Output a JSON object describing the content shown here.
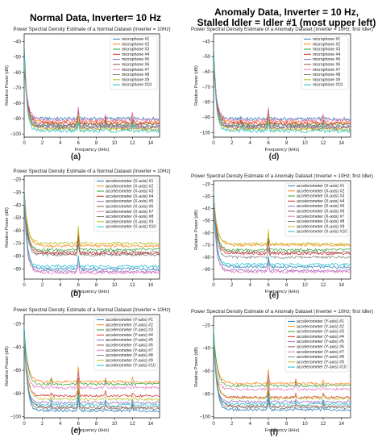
{
  "headings": {
    "left": "Normal Data, Inverter= 10 Hz",
    "right_line1": "Anomaly Data, Inverter = 10 Hz,",
    "right_line2": "Stalled Idler = Idler #1 (most upper left)"
  },
  "colors": [
    "#1f77b4",
    "#ff7f0e",
    "#2ca02c",
    "#d62728",
    "#9467bd",
    "#8c564b",
    "#e377c2",
    "#7f7f7f",
    "#bcbd22",
    "#17becf"
  ],
  "chart_data": [
    {
      "id": "a",
      "caption": "(a)",
      "type": "line",
      "title": "Power Spectral Density Estimate of a Normal Dataset (Inverter = 10Hz)",
      "xlabel": "Frequency (kHz)",
      "ylabel": "Relative Power (dB)",
      "xlim": [
        0,
        15
      ],
      "ylim": [
        -102,
        -35
      ],
      "xticks": [
        0,
        2,
        4,
        6,
        8,
        10,
        12,
        14
      ],
      "yticks": [
        -100,
        -90,
        -80,
        -70,
        -60,
        -50,
        -40
      ],
      "legend_position": "top-right",
      "peaks": [
        {
          "x": 6.0,
          "h": 10
        },
        {
          "x": 12.0,
          "h": 5
        },
        {
          "x": 9.0,
          "h": 3
        }
      ],
      "series": [
        {
          "name": "microphone #1",
          "start": -40,
          "floor": -90,
          "decay": 1.8
        },
        {
          "name": "microphone #2",
          "start": -45,
          "floor": -92,
          "decay": 1.5
        },
        {
          "name": "microphone #3",
          "start": -42,
          "floor": -94,
          "decay": 1.6
        },
        {
          "name": "microphone #4",
          "start": -48,
          "floor": -93,
          "decay": 1.4
        },
        {
          "name": "microphone #5",
          "start": -50,
          "floor": -95,
          "decay": 1.3
        },
        {
          "name": "microphone #6",
          "start": -46,
          "floor": -96,
          "decay": 1.5
        },
        {
          "name": "microphone #7",
          "start": -55,
          "floor": -91,
          "decay": 1.2
        },
        {
          "name": "microphone #8",
          "start": -44,
          "floor": -95,
          "decay": 1.7
        },
        {
          "name": "microphone #9",
          "start": -52,
          "floor": -97,
          "decay": 1.4
        },
        {
          "name": "microphone #10",
          "start": -47,
          "floor": -98,
          "decay": 1.6
        }
      ]
    },
    {
      "id": "b",
      "caption": "(b)",
      "type": "line",
      "title": "Power Spectral Density Estimate of a Normal Dataset (Inverter = 10Hz)",
      "xlabel": "Frequency (kHz)",
      "ylabel": "Relative Power (dB)",
      "xlim": [
        0,
        15
      ],
      "ylim": [
        -98,
        -17
      ],
      "xticks": [
        0,
        2,
        4,
        6,
        8,
        10,
        12,
        14
      ],
      "yticks": [
        -90,
        -80,
        -70,
        -60,
        -50,
        -40,
        -30,
        -20
      ],
      "legend_position": "top-right",
      "peaks": [
        {
          "x": 6.0,
          "h": 14
        }
      ],
      "series": [
        {
          "name": "accelerometer (X-axis) #1",
          "start": -25,
          "floor": -90,
          "decay": 1.5
        },
        {
          "name": "accelerometer (X-axis) #2",
          "start": -28,
          "floor": -72,
          "decay": 1.2
        },
        {
          "name": "accelerometer (X-axis) #3",
          "start": -30,
          "floor": -75,
          "decay": 1.3
        },
        {
          "name": "accelerometer (X-axis) #4",
          "start": -26,
          "floor": -78,
          "decay": 1.4
        },
        {
          "name": "accelerometer (X-axis) #5",
          "start": -32,
          "floor": -92,
          "decay": 1.6
        },
        {
          "name": "accelerometer (X-axis) #6",
          "start": -29,
          "floor": -77,
          "decay": 1.3
        },
        {
          "name": "accelerometer (X-axis) #7",
          "start": -27,
          "floor": -93,
          "decay": 1.5
        },
        {
          "name": "accelerometer (X-axis) #8",
          "start": -31,
          "floor": -79,
          "decay": 1.4
        },
        {
          "name": "accelerometer (X-axis) #9",
          "start": -33,
          "floor": -70,
          "decay": 1.2
        },
        {
          "name": "accelerometer (X-axis) #10",
          "start": -28,
          "floor": -88,
          "decay": 1.6
        }
      ]
    },
    {
      "id": "c",
      "caption": "(c)",
      "type": "line",
      "title": "Power Spectral Density Estimate of a Normal Dataset (Inverter = 10Hz)",
      "xlabel": "Frequency (kHz)",
      "ylabel": "Relative Power (dB)",
      "xlim": [
        0,
        15
      ],
      "ylim": [
        -101,
        -12
      ],
      "xticks": [
        0,
        2,
        4,
        6,
        8,
        10,
        12,
        14
      ],
      "yticks": [
        -100,
        -80,
        -60,
        -40,
        -20
      ],
      "legend_position": "top-right",
      "peaks": [
        {
          "x": 6.0,
          "h": 16
        },
        {
          "x": 3.0,
          "h": 5
        },
        {
          "x": 9.0,
          "h": 4
        },
        {
          "x": 12.0,
          "h": 4
        }
      ],
      "series": [
        {
          "name": "accelerometer (Y-axis) #1",
          "start": -20,
          "floor": -95,
          "decay": 1.5
        },
        {
          "name": "accelerometer (Y-axis) #2",
          "start": -25,
          "floor": -70,
          "decay": 1.2
        },
        {
          "name": "accelerometer (Y-axis) #3",
          "start": -22,
          "floor": -72,
          "decay": 1.3
        },
        {
          "name": "accelerometer (Y-axis) #4",
          "start": -27,
          "floor": -82,
          "decay": 1.4
        },
        {
          "name": "accelerometer (Y-axis) #5",
          "start": -30,
          "floor": -88,
          "decay": 1.6
        },
        {
          "name": "accelerometer (Y-axis) #6",
          "start": -24,
          "floor": -92,
          "decay": 1.3
        },
        {
          "name": "accelerometer (Y-axis) #7",
          "start": -28,
          "floor": -75,
          "decay": 1.5
        },
        {
          "name": "accelerometer (Y-axis) #8",
          "start": -26,
          "floor": -93,
          "decay": 1.4
        },
        {
          "name": "accelerometer (Y-axis) #9",
          "start": -32,
          "floor": -85,
          "decay": 1.2
        },
        {
          "name": "accelerometer (Y-axis) #10",
          "start": -23,
          "floor": -90,
          "decay": 1.6
        }
      ]
    },
    {
      "id": "d",
      "caption": "(d)",
      "type": "line",
      "title": "Power Spectral Density Estimate of a Anomaly Dataset (Inverter = 10Hz; first Idler)",
      "xlabel": "Frequency (kHz)",
      "ylabel": "Relative Power (dB)",
      "xlim": [
        0,
        15
      ],
      "ylim": [
        -103,
        -35
      ],
      "xticks": [
        0,
        2,
        4,
        6,
        8,
        10,
        12,
        14
      ],
      "yticks": [
        -100,
        -90,
        -80,
        -70,
        -60,
        -50,
        -40
      ],
      "legend_position": "top-right",
      "peaks": [
        {
          "x": 6.0,
          "h": 10
        },
        {
          "x": 12.0,
          "h": 4
        },
        {
          "x": 3.0,
          "h": 3
        }
      ],
      "series": [
        {
          "name": "microphone #1",
          "start": -42,
          "floor": -91,
          "decay": 1.7
        },
        {
          "name": "microphone #2",
          "start": -46,
          "floor": -93,
          "decay": 1.5
        },
        {
          "name": "microphone #3",
          "start": -44,
          "floor": -95,
          "decay": 1.6
        },
        {
          "name": "microphone #4",
          "start": -49,
          "floor": -94,
          "decay": 1.4
        },
        {
          "name": "microphone #5",
          "start": -51,
          "floor": -96,
          "decay": 1.3
        },
        {
          "name": "microphone #6",
          "start": -47,
          "floor": -97,
          "decay": 1.5
        },
        {
          "name": "microphone #7",
          "start": -56,
          "floor": -92,
          "decay": 1.2
        },
        {
          "name": "microphone #8",
          "start": -45,
          "floor": -96,
          "decay": 1.7
        },
        {
          "name": "microphone #9",
          "start": -53,
          "floor": -98,
          "decay": 1.4
        },
        {
          "name": "microphone #10",
          "start": -48,
          "floor": -99,
          "decay": 1.6
        }
      ]
    },
    {
      "id": "e",
      "caption": "(e)",
      "type": "line",
      "title": "Power Spectral Density Estimate of a Anomaly Dataset (Inverter = 10Hz; first Idler)",
      "xlabel": "Frequency (kHz)",
      "ylabel": "Relative Power (dB)",
      "xlim": [
        0,
        15
      ],
      "ylim": [
        -98,
        -17
      ],
      "xticks": [
        0,
        2,
        4,
        6,
        8,
        10,
        12,
        14
      ],
      "yticks": [
        -90,
        -80,
        -70,
        -60,
        -50,
        -40,
        -30,
        -20
      ],
      "legend_position": "top-right",
      "peaks": [
        {
          "x": 6.0,
          "h": 12
        }
      ],
      "series": [
        {
          "name": "accelerometer (X-axis) #1",
          "start": -24,
          "floor": -88,
          "decay": 1.5
        },
        {
          "name": "accelerometer (X-axis) #2",
          "start": -27,
          "floor": -70,
          "decay": 1.2
        },
        {
          "name": "accelerometer (X-axis) #3",
          "start": -29,
          "floor": -74,
          "decay": 1.3
        },
        {
          "name": "accelerometer (X-axis) #4",
          "start": -25,
          "floor": -77,
          "decay": 1.4
        },
        {
          "name": "accelerometer (X-axis) #5",
          "start": -31,
          "floor": -91,
          "decay": 1.6
        },
        {
          "name": "accelerometer (X-axis) #6",
          "start": -28,
          "floor": -76,
          "decay": 1.3
        },
        {
          "name": "accelerometer (X-axis) #7",
          "start": -26,
          "floor": -92,
          "decay": 1.5
        },
        {
          "name": "accelerometer (X-axis) #8",
          "start": -30,
          "floor": -80,
          "decay": 1.4
        },
        {
          "name": "accelerometer (X-axis) #9",
          "start": -32,
          "floor": -69,
          "decay": 1.2
        },
        {
          "name": "accelerometer (X-axis) #10",
          "start": -27,
          "floor": -86,
          "decay": 1.6
        }
      ]
    },
    {
      "id": "f",
      "caption": "(f)",
      "type": "line",
      "title": "Power Spectral Density Estimate of a Anomaly Dataset (Inverter = 10Hz; first Idler)",
      "xlabel": "Frequency (kHz)",
      "ylabel": "Relative Power (dB)",
      "xlim": [
        0,
        15
      ],
      "ylim": [
        -101,
        -12
      ],
      "xticks": [
        0,
        2,
        4,
        6,
        8,
        10,
        12,
        14
      ],
      "yticks": [
        -100,
        -80,
        -60,
        -40,
        -20
      ],
      "legend_position": "top-right",
      "peaks": [
        {
          "x": 6.0,
          "h": 15
        },
        {
          "x": 9.0,
          "h": 4
        },
        {
          "x": 12.0,
          "h": 4
        }
      ],
      "series": [
        {
          "name": "accelerometer (Y-axis) #1",
          "start": -21,
          "floor": -94,
          "decay": 1.5
        },
        {
          "name": "accelerometer (Y-axis) #2",
          "start": -26,
          "floor": -71,
          "decay": 1.2
        },
        {
          "name": "accelerometer (Y-axis) #3",
          "start": -23,
          "floor": -73,
          "decay": 1.3
        },
        {
          "name": "accelerometer (Y-axis) #4",
          "start": -28,
          "floor": -83,
          "decay": 1.4
        },
        {
          "name": "accelerometer (Y-axis) #5",
          "start": -31,
          "floor": -87,
          "decay": 1.6
        },
        {
          "name": "accelerometer (Y-axis) #6",
          "start": -25,
          "floor": -91,
          "decay": 1.3
        },
        {
          "name": "accelerometer (Y-axis) #7",
          "start": -29,
          "floor": -76,
          "decay": 1.5
        },
        {
          "name": "accelerometer (Y-axis) #8",
          "start": -27,
          "floor": -92,
          "decay": 1.4
        },
        {
          "name": "accelerometer (Y-axis) #9",
          "start": -33,
          "floor": -84,
          "decay": 1.2
        },
        {
          "name": "accelerometer (Y-axis) #10",
          "start": -24,
          "floor": -89,
          "decay": 1.6
        }
      ]
    }
  ]
}
